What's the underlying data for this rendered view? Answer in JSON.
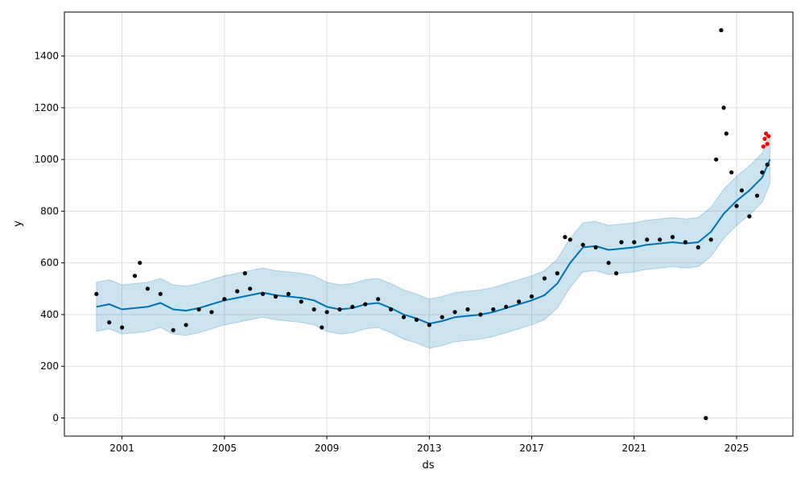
{
  "chart_data": {
    "type": "scatter",
    "title": "",
    "xlabel": "ds",
    "ylabel": "y",
    "xlim": [
      1998.75,
      2027.2
    ],
    "ylim": [
      -70,
      1570
    ],
    "grid": true,
    "x_ticks": [
      2001,
      2005,
      2009,
      2013,
      2017,
      2021,
      2025
    ],
    "x_tick_labels": [
      "2001",
      "2005",
      "2009",
      "2013",
      "2017",
      "2021",
      "2025"
    ],
    "y_ticks": [
      0,
      200,
      400,
      600,
      800,
      1000,
      1200,
      1400
    ],
    "y_tick_labels": [
      "0",
      "200",
      "400",
      "600",
      "800",
      "1000",
      "1200",
      "1400"
    ],
    "forecast": {
      "x": [
        2000.0,
        2000.5,
        2001.0,
        2001.5,
        2002.0,
        2002.5,
        2003.0,
        2003.5,
        2004.0,
        2004.5,
        2005.0,
        2005.5,
        2006.0,
        2006.5,
        2007.0,
        2007.5,
        2008.0,
        2008.5,
        2009.0,
        2009.5,
        2010.0,
        2010.5,
        2011.0,
        2011.5,
        2012.0,
        2012.5,
        2013.0,
        2013.5,
        2014.0,
        2014.5,
        2015.0,
        2015.5,
        2016.0,
        2016.5,
        2017.0,
        2017.5,
        2018.0,
        2018.5,
        2019.0,
        2019.5,
        2020.0,
        2020.5,
        2021.0,
        2021.5,
        2022.0,
        2022.5,
        2023.0,
        2023.5,
        2024.0,
        2024.5,
        2025.0,
        2025.5,
        2026.0,
        2026.3
      ],
      "yhat": [
        430,
        440,
        420,
        425,
        430,
        445,
        420,
        415,
        425,
        440,
        455,
        465,
        475,
        485,
        475,
        470,
        465,
        455,
        430,
        420,
        425,
        440,
        445,
        425,
        400,
        385,
        365,
        375,
        390,
        395,
        400,
        410,
        425,
        440,
        455,
        475,
        520,
        600,
        660,
        665,
        650,
        655,
        660,
        670,
        675,
        680,
        675,
        680,
        720,
        790,
        840,
        880,
        930,
        1000
      ],
      "lower": [
        335,
        345,
        325,
        330,
        335,
        350,
        325,
        320,
        330,
        345,
        360,
        370,
        380,
        390,
        380,
        375,
        370,
        360,
        335,
        325,
        330,
        345,
        350,
        330,
        305,
        290,
        270,
        280,
        295,
        300,
        305,
        315,
        330,
        345,
        360,
        380,
        425,
        505,
        565,
        570,
        555,
        560,
        565,
        575,
        580,
        585,
        580,
        585,
        625,
        695,
        745,
        785,
        835,
        905
      ],
      "upper": [
        525,
        535,
        515,
        520,
        525,
        540,
        515,
        510,
        520,
        535,
        550,
        560,
        570,
        580,
        570,
        565,
        560,
        550,
        525,
        515,
        520,
        535,
        540,
        520,
        495,
        480,
        460,
        470,
        485,
        490,
        495,
        505,
        520,
        535,
        550,
        570,
        615,
        695,
        755,
        760,
        745,
        750,
        755,
        765,
        770,
        775,
        770,
        775,
        815,
        885,
        935,
        975,
        1025,
        1095
      ]
    },
    "series": [
      {
        "x": [
          2000.0,
          2000.5,
          2001.0,
          2001.5,
          2001.7,
          2002.0,
          2002.5,
          2003.0,
          2003.5,
          2004.0,
          2004.5,
          2005.0,
          2005.5,
          2005.8,
          2006.0,
          2006.5,
          2007.0,
          2007.5,
          2008.0,
          2008.5,
          2008.8,
          2009.0,
          2009.5,
          2010.0,
          2010.5,
          2011.0,
          2011.5,
          2012.0,
          2012.5,
          2013.0,
          2013.5,
          2014.0,
          2014.5,
          2015.0,
          2015.5,
          2016.0,
          2016.5,
          2017.0,
          2017.5,
          2018.0,
          2018.3,
          2018.5,
          2019.0,
          2019.5,
          2020.0,
          2020.3,
          2020.5,
          2021.0,
          2021.5,
          2022.0,
          2022.5,
          2023.0,
          2023.5,
          2023.8,
          2024.0,
          2024.2,
          2024.4,
          2024.5,
          2024.6,
          2024.8,
          2025.0,
          2025.2,
          2025.5,
          2025.8,
          2026.0,
          2026.2
        ],
        "y": [
          480,
          370,
          350,
          550,
          600,
          500,
          480,
          340,
          360,
          420,
          410,
          460,
          490,
          560,
          500,
          480,
          470,
          480,
          450,
          420,
          350,
          410,
          420,
          430,
          440,
          460,
          420,
          390,
          380,
          360,
          390,
          410,
          420,
          400,
          420,
          430,
          450,
          470,
          540,
          560,
          700,
          690,
          670,
          660,
          600,
          560,
          680,
          680,
          690,
          690,
          700,
          680,
          660,
          0,
          690,
          1000,
          1500,
          1200,
          1100,
          950,
          820,
          880,
          780,
          860,
          950,
          980
        ]
      },
      {
        "x": [
          2026.05,
          2026.1,
          2026.15,
          2026.2,
          2026.25
        ],
        "y": [
          1050,
          1080,
          1100,
          1060,
          1090
        ],
        "color": "#ff0000"
      }
    ],
    "colors": {
      "forecast_line": "#0072B2",
      "interval_band": "#0072B2",
      "observed_points": "#000000",
      "future_points": "#ff0000",
      "grid": "#dddddd"
    }
  },
  "plot": {
    "xlabel": "ds",
    "ylabel": "y"
  }
}
